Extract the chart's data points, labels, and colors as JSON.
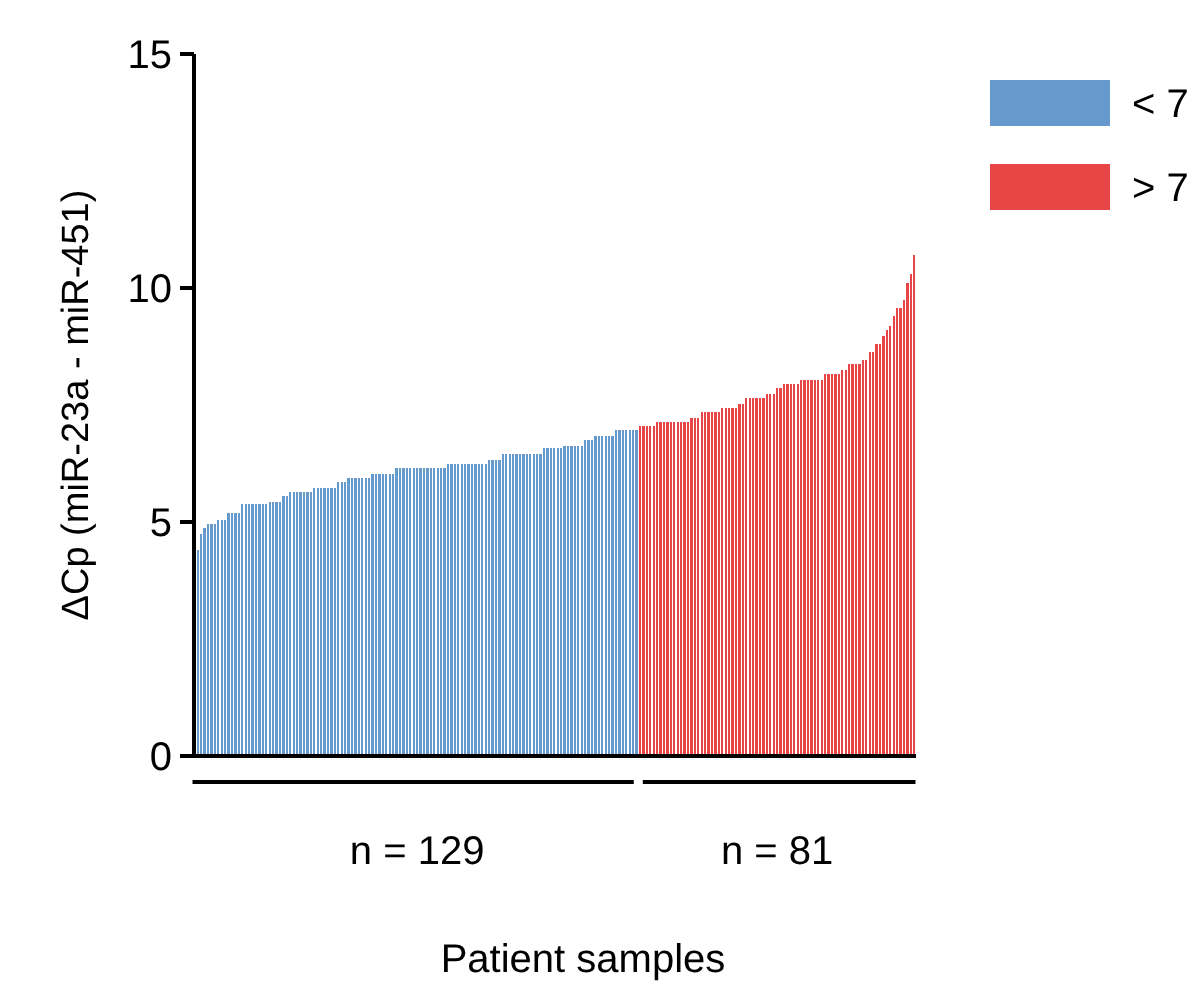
{
  "chart_data": {
    "type": "bar",
    "stacked": true,
    "xlabel": "Patient samples",
    "ylabel": "ΔCp (miR-23a - miR-451)",
    "ylim": [
      0,
      15
    ],
    "yticks": [
      0,
      5,
      10,
      15
    ],
    "grid": false,
    "legend": "top right",
    "annotations": [
      "n = 129",
      "n = 81"
    ],
    "categories": [
      null,
      null,
      null,
      null,
      null,
      null,
      null,
      null,
      null,
      null,
      null,
      null,
      null,
      null,
      null,
      null,
      null,
      null,
      null,
      null,
      null,
      null,
      null,
      null,
      null,
      null,
      null,
      null,
      null,
      null,
      null,
      null,
      null,
      null,
      null,
      null,
      null,
      null,
      null,
      null,
      null,
      null,
      null,
      null,
      null,
      null,
      null,
      null,
      null,
      null,
      null,
      null,
      null,
      null,
      null,
      null,
      null,
      null,
      null,
      null,
      null,
      null,
      null,
      null,
      null,
      null,
      null,
      null,
      null,
      null,
      null,
      null,
      null,
      null,
      null,
      null,
      null,
      null,
      null,
      null,
      null,
      null,
      null,
      null,
      null,
      null,
      null,
      null,
      null,
      null,
      null,
      null,
      null,
      null,
      null,
      null,
      null,
      null,
      null,
      null,
      null,
      null,
      null,
      null,
      null,
      null,
      null,
      null,
      null,
      null,
      null,
      null,
      null,
      null,
      null,
      null,
      null,
      null,
      null,
      null,
      null,
      null,
      null,
      null,
      null,
      null,
      null,
      null,
      null,
      null,
      null,
      null,
      null,
      null,
      null,
      null,
      null,
      null,
      null,
      null,
      null,
      null,
      null,
      null,
      null,
      null,
      null,
      null,
      null,
      null,
      null,
      null,
      null,
      null,
      null,
      null,
      null,
      null,
      null,
      null,
      null,
      null,
      null,
      null,
      null,
      null,
      null,
      null,
      null,
      null,
      null,
      null,
      null,
      null,
      null,
      null,
      null,
      null,
      null,
      null,
      null,
      null,
      null,
      null,
      null,
      null,
      null,
      null,
      null,
      null,
      null,
      null,
      null,
      null,
      null,
      null,
      null,
      null,
      null,
      null,
      null,
      null,
      null,
      null,
      null,
      null,
      null,
      null,
      null,
      null
    ],
    "series": [
      {
        "name": "< 7",
        "color": "#6699cc",
        "values": [
          4.4,
          4.75,
          4.87,
          4.96,
          4.96,
          4.96,
          5.04,
          5.04,
          5.04,
          5.2,
          5.2,
          5.2,
          5.2,
          5.38,
          5.38,
          5.38,
          5.38,
          5.38,
          5.38,
          5.38,
          5.38,
          5.43,
          5.43,
          5.43,
          5.43,
          5.55,
          5.55,
          5.64,
          5.64,
          5.64,
          5.64,
          5.64,
          5.64,
          5.64,
          5.73,
          5.73,
          5.73,
          5.73,
          5.73,
          5.73,
          5.73,
          5.85,
          5.85,
          5.85,
          5.94,
          5.94,
          5.94,
          5.94,
          5.94,
          5.94,
          5.94,
          6.03,
          6.03,
          6.03,
          6.03,
          6.03,
          6.03,
          6.03,
          6.15,
          6.15,
          6.15,
          6.15,
          6.15,
          6.15,
          6.15,
          6.15,
          6.15,
          6.15,
          6.15,
          6.15,
          6.15,
          6.15,
          6.15,
          6.24,
          6.24,
          6.24,
          6.24,
          6.24,
          6.24,
          6.24,
          6.24,
          6.24,
          6.24,
          6.24,
          6.24,
          6.33,
          6.33,
          6.33,
          6.33,
          6.45,
          6.45,
          6.45,
          6.45,
          6.45,
          6.45,
          6.45,
          6.45,
          6.45,
          6.45,
          6.45,
          6.45,
          6.58,
          6.58,
          6.58,
          6.58,
          6.58,
          6.58,
          6.62,
          6.62,
          6.62,
          6.62,
          6.62,
          6.62,
          6.75,
          6.75,
          6.75,
          6.84,
          6.84,
          6.84,
          6.84,
          6.84,
          6.84,
          6.97,
          6.97,
          6.97,
          6.97,
          6.97,
          6.97,
          6.97,
          null,
          null,
          null,
          null,
          null,
          null,
          null,
          null,
          null,
          null,
          null,
          null,
          null,
          null,
          null,
          null,
          null,
          null,
          null,
          null,
          null,
          null,
          null,
          null,
          null,
          null,
          null,
          null,
          null,
          null,
          null,
          null,
          null,
          null,
          null,
          null,
          null,
          null,
          null,
          null,
          null,
          null,
          null,
          null,
          null,
          null,
          null,
          null,
          null,
          null,
          null,
          null,
          null,
          null,
          null,
          null,
          null,
          null,
          null,
          null,
          null,
          null,
          null,
          null,
          null,
          null,
          null,
          null,
          null,
          null,
          null,
          null,
          null,
          null,
          null,
          null,
          null,
          null,
          null,
          null,
          null
        ]
      },
      {
        "name": "> 7",
        "color": "#e84646",
        "values": [
          null,
          null,
          null,
          null,
          null,
          null,
          null,
          null,
          null,
          null,
          null,
          null,
          null,
          null,
          null,
          null,
          null,
          null,
          null,
          null,
          null,
          null,
          null,
          null,
          null,
          null,
          null,
          null,
          null,
          null,
          null,
          null,
          null,
          null,
          null,
          null,
          null,
          null,
          null,
          null,
          null,
          null,
          null,
          null,
          null,
          null,
          null,
          null,
          null,
          null,
          null,
          null,
          null,
          null,
          null,
          null,
          null,
          null,
          null,
          null,
          null,
          null,
          null,
          null,
          null,
          null,
          null,
          null,
          null,
          null,
          null,
          null,
          null,
          null,
          null,
          null,
          null,
          null,
          null,
          null,
          null,
          null,
          null,
          null,
          null,
          null,
          null,
          null,
          null,
          null,
          null,
          null,
          null,
          null,
          null,
          null,
          null,
          null,
          null,
          null,
          null,
          null,
          null,
          null,
          null,
          null,
          null,
          null,
          null,
          null,
          null,
          null,
          null,
          null,
          null,
          null,
          null,
          null,
          null,
          null,
          null,
          null,
          null,
          null,
          null,
          null,
          null,
          null,
          null,
          7.05,
          7.05,
          7.05,
          7.05,
          7.05,
          7.14,
          7.14,
          7.14,
          7.14,
          7.14,
          7.14,
          7.14,
          7.14,
          7.14,
          7.14,
          7.22,
          7.22,
          7.22,
          7.35,
          7.35,
          7.35,
          7.35,
          7.35,
          7.35,
          7.44,
          7.44,
          7.44,
          7.44,
          7.44,
          7.52,
          7.52,
          7.65,
          7.65,
          7.65,
          7.65,
          7.65,
          7.65,
          7.74,
          7.74,
          7.74,
          7.86,
          7.86,
          7.95,
          7.95,
          7.95,
          7.95,
          7.95,
          8.03,
          8.03,
          8.03,
          8.03,
          8.03,
          8.03,
          8.03,
          8.16,
          8.16,
          8.16,
          8.16,
          8.16,
          8.25,
          8.25,
          8.38,
          8.38,
          8.38,
          8.38,
          8.46,
          8.46,
          8.63,
          8.63,
          8.8,
          8.8,
          8.97,
          9.1,
          9.19,
          9.4,
          9.57,
          9.57,
          9.74,
          10.1,
          10.3,
          10.7
        ]
      }
    ]
  }
}
